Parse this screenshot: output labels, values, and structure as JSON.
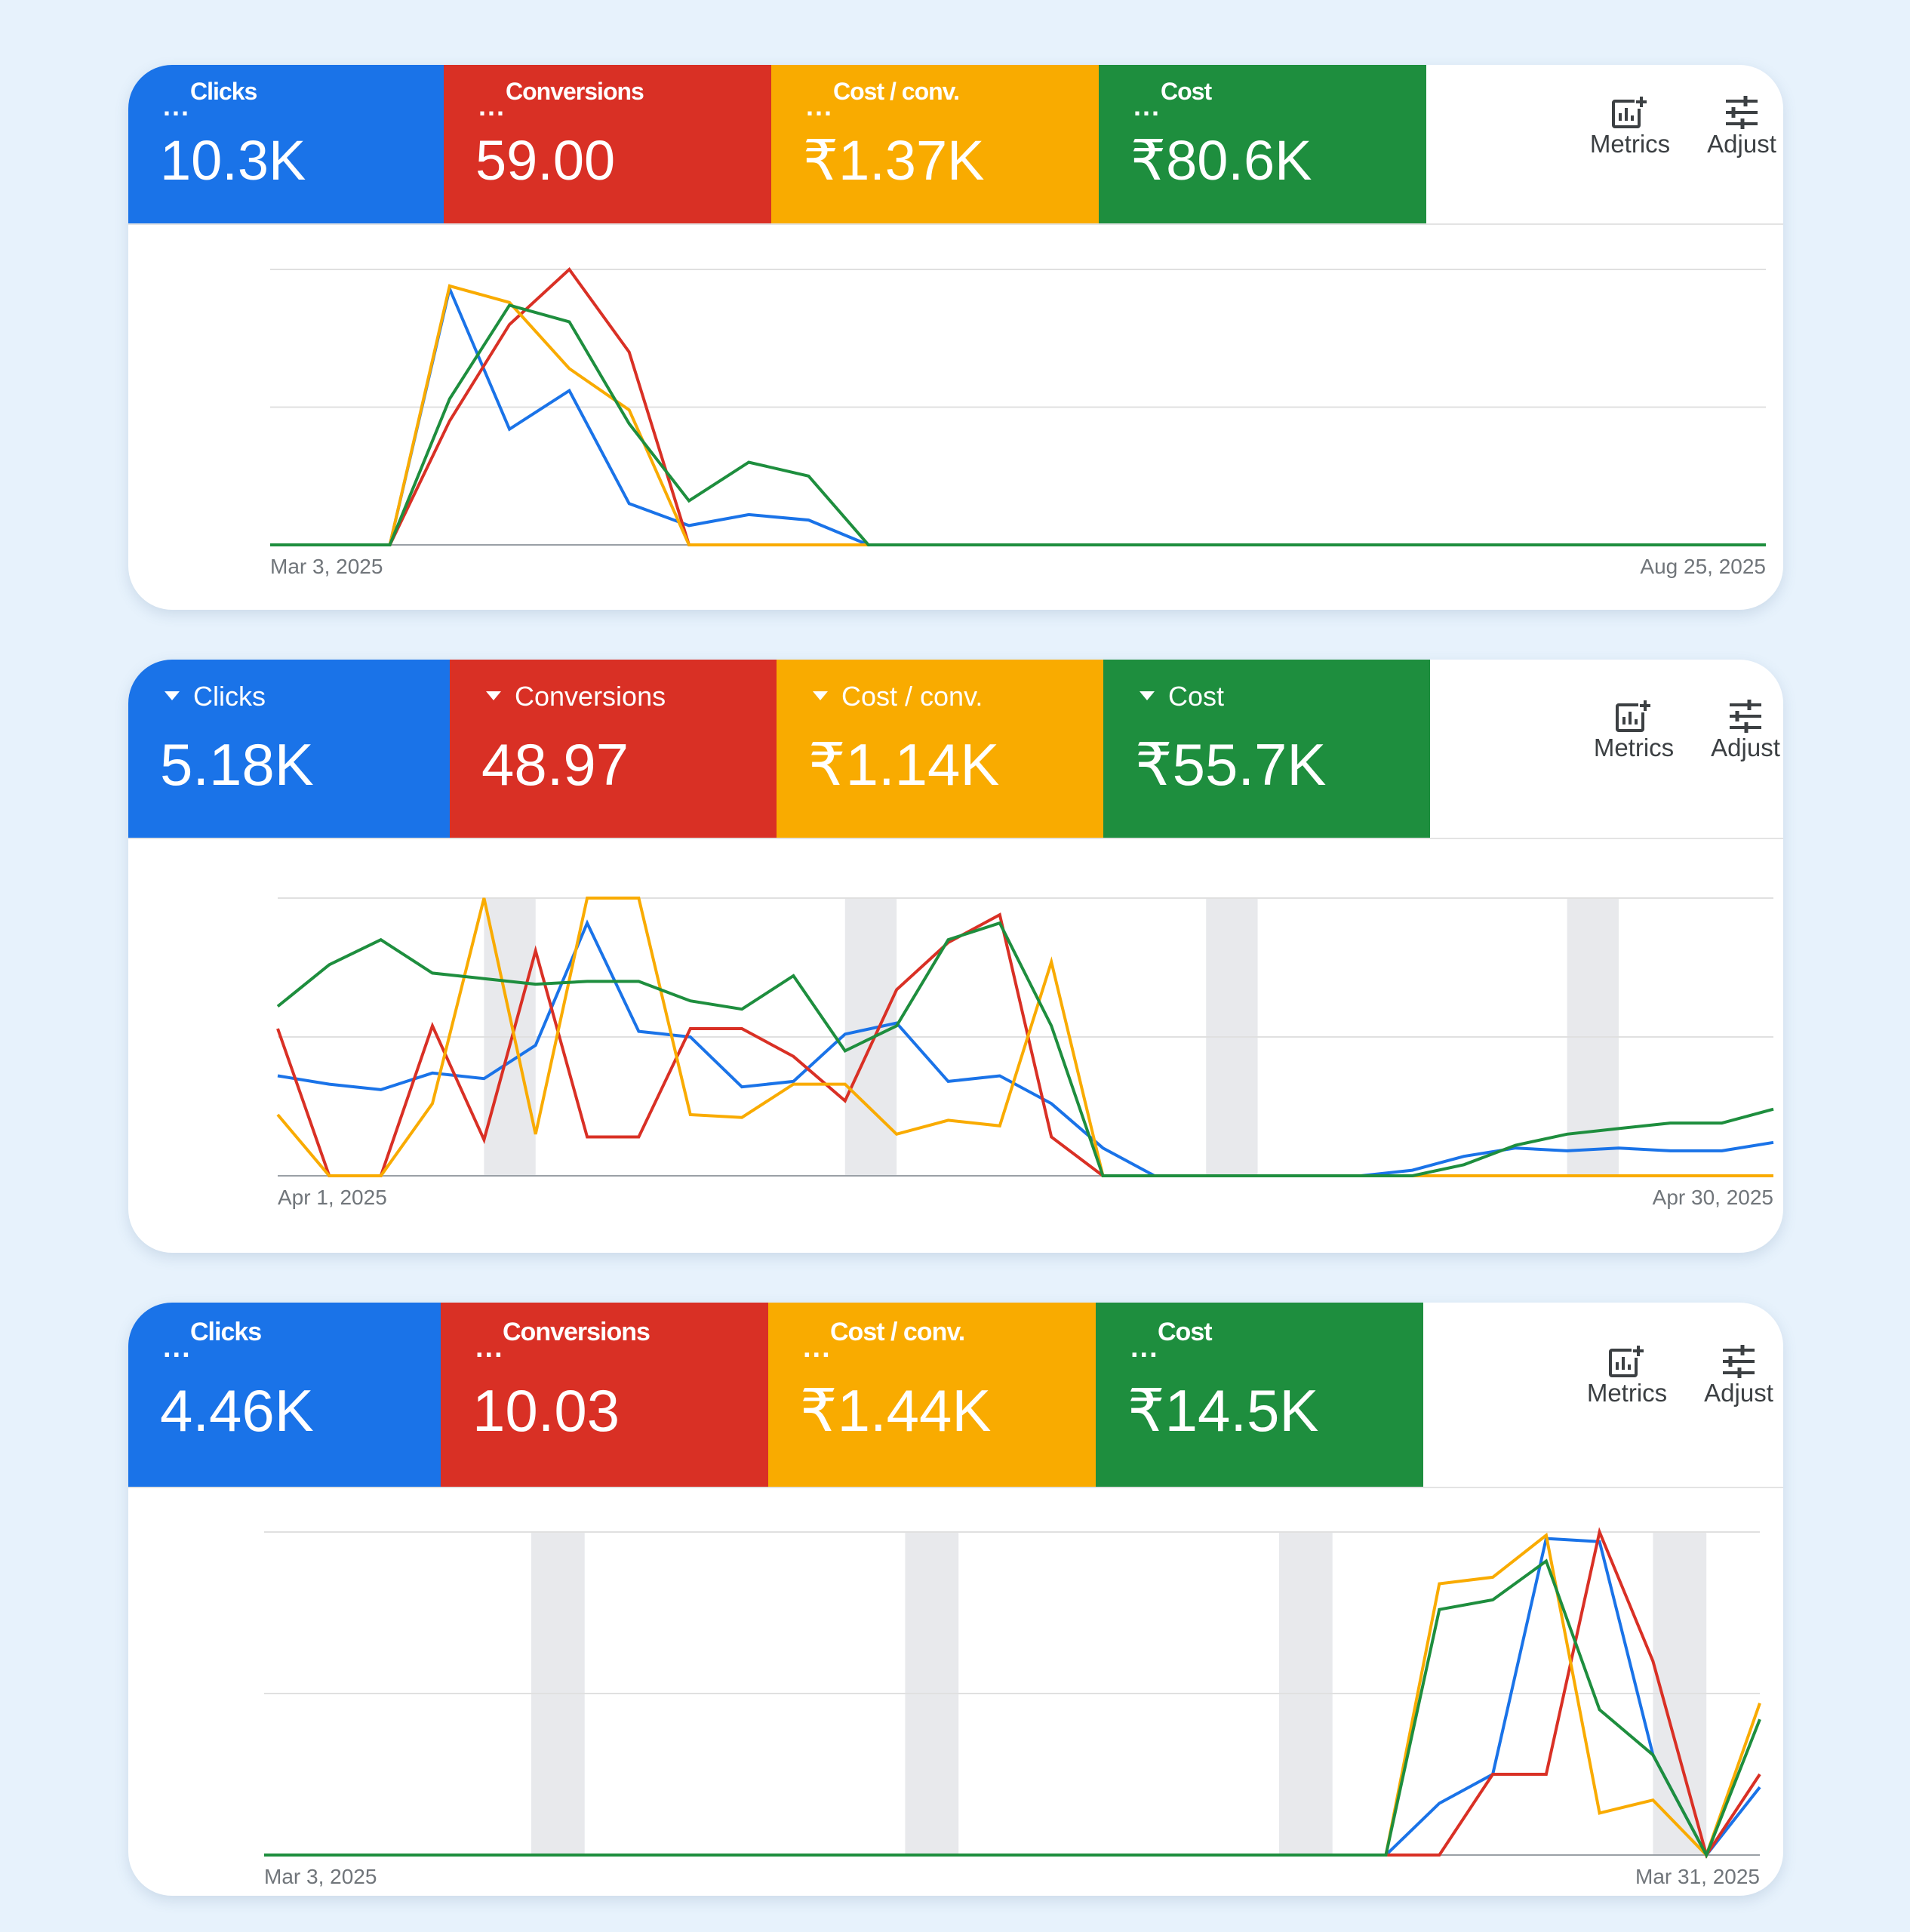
{
  "colors": {
    "clicks": "#1a73e8",
    "conversions": "#d93025",
    "cost_per_conv": "#f9ab00",
    "cost": "#1e8e3e",
    "weekend_band": "#e8e9ec",
    "gridline": "#e0e0e0",
    "page_background": "#e7f2fc"
  },
  "toolbar": {
    "metrics_label": "Metrics",
    "metrics_icon": "chart-add-icon",
    "adjust_label": "Adjust",
    "adjust_icon": "sliders-icon"
  },
  "panels": [
    {
      "tiles": [
        {
          "key": "clicks",
          "label": "Clicks",
          "value": "10.3K"
        },
        {
          "key": "conversions",
          "label": "Conversions",
          "value": "59.00"
        },
        {
          "key": "cost_per_conv",
          "label": "Cost / conv.",
          "value": "₹1.37K"
        },
        {
          "key": "cost",
          "label": "Cost",
          "value": "₹80.6K"
        }
      ],
      "toolbar": {
        "metrics_label": "Metrics",
        "adjust_label": "Adjust"
      },
      "chart_data": {
        "type": "line",
        "x_start_label": "Mar 3, 2025",
        "x_end_label": "Aug 25, 2025",
        "x": [
          "Mar 3, 2025",
          "Mar 10, 2025",
          "Mar 17, 2025",
          "Mar 24, 2025",
          "Mar 31, 2025",
          "Apr 7, 2025",
          "Apr 14, 2025",
          "Apr 21, 2025",
          "Apr 28, 2025",
          "May 5, 2025",
          "May 12, 2025",
          "May 19, 2025",
          "May 26, 2025",
          "Jun 2, 2025",
          "Jun 9, 2025",
          "Jun 16, 2025",
          "Jun 23, 2025",
          "Jun 30, 2025",
          "Jul 7, 2025",
          "Jul 14, 2025",
          "Jul 21, 2025",
          "Jul 28, 2025",
          "Aug 4, 2025",
          "Aug 11, 2025",
          "Aug 18, 2025",
          "Aug 25, 2025"
        ],
        "y_scale": "relative (0-100% of each series' max, no tick labels shown)",
        "ylim": [
          0,
          100
        ],
        "grid": "horizontal gridlines",
        "series": [
          {
            "key": "clicks",
            "values": [
              0,
              0,
              0,
              93,
              42,
              56,
              15,
              7,
              11,
              9,
              0,
              0,
              0,
              0,
              0,
              0,
              0,
              0,
              0,
              0,
              0,
              0,
              0,
              0,
              0,
              0
            ]
          },
          {
            "key": "conversions",
            "values": [
              0,
              0,
              0,
              45,
              80,
              100,
              70,
              0,
              0,
              0,
              0,
              0,
              0,
              0,
              0,
              0,
              0,
              0,
              0,
              0,
              0,
              0,
              0,
              0,
              0,
              0
            ]
          },
          {
            "key": "cost_per_conv",
            "values": [
              0,
              0,
              0,
              94,
              88,
              64,
              49,
              0,
              0,
              0,
              0,
              0,
              0,
              0,
              0,
              0,
              0,
              0,
              0,
              0,
              0,
              0,
              0,
              0,
              0,
              0
            ]
          },
          {
            "key": "cost",
            "values": [
              0,
              0,
              0,
              53,
              87,
              81,
              44,
              16,
              30,
              25,
              0,
              0,
              0,
              0,
              0,
              0,
              0,
              0,
              0,
              0,
              0,
              0,
              0,
              0,
              0,
              0
            ]
          }
        ]
      }
    },
    {
      "tiles": [
        {
          "key": "clicks",
          "label": "Clicks",
          "value": "5.18K"
        },
        {
          "key": "conversions",
          "label": "Conversions",
          "value": "48.97"
        },
        {
          "key": "cost_per_conv",
          "label": "Cost / conv.",
          "value": "₹1.14K"
        },
        {
          "key": "cost",
          "label": "Cost",
          "value": "₹55.7K"
        }
      ],
      "toolbar": {
        "metrics_label": "Metrics",
        "adjust_label": "Adjust"
      },
      "chart_data": {
        "type": "line",
        "x_start_label": "Apr 1, 2025",
        "x_end_label": "Apr 30, 2025",
        "x": [
          "Apr 1",
          "Apr 2",
          "Apr 3",
          "Apr 4",
          "Apr 5",
          "Apr 6",
          "Apr 7",
          "Apr 8",
          "Apr 9",
          "Apr 10",
          "Apr 11",
          "Apr 12",
          "Apr 13",
          "Apr 14",
          "Apr 15",
          "Apr 16",
          "Apr 17",
          "Apr 18",
          "Apr 19",
          "Apr 20",
          "Apr 21",
          "Apr 22",
          "Apr 23",
          "Apr 24",
          "Apr 25",
          "Apr 26",
          "Apr 27",
          "Apr 28",
          "Apr 29",
          "Apr 30"
        ],
        "weekend_bands": [
          [
            "Apr 5",
            "Apr 6"
          ],
          [
            "Apr 12",
            "Apr 13"
          ],
          [
            "Apr 19",
            "Apr 20"
          ],
          [
            "Apr 26",
            "Apr 27"
          ]
        ],
        "y_scale": "relative (0-100% of each series' max, no tick labels shown)",
        "ylim": [
          0,
          100
        ],
        "grid": "horizontal gridlines",
        "series": [
          {
            "key": "clicks",
            "values": [
              36,
              33,
              31,
              37,
              35,
              47,
              91,
              52,
              50,
              32,
              34,
              51,
              55,
              34,
              36,
              26,
              10,
              0,
              0,
              0,
              0,
              0,
              2,
              7,
              10,
              9,
              10,
              9,
              9,
              12
            ]
          },
          {
            "key": "conversions",
            "values": [
              53,
              0,
              0,
              54,
              13,
              81,
              14,
              14,
              53,
              53,
              43,
              27,
              67,
              84,
              94,
              14,
              0,
              0,
              0,
              0,
              0,
              0,
              0,
              0,
              0,
              0,
              0,
              0,
              0,
              0
            ]
          },
          {
            "key": "cost_per_conv",
            "values": [
              22,
              0,
              0,
              26,
              100,
              15,
              100,
              100,
              22,
              21,
              33,
              33,
              15,
              20,
              18,
              77,
              0,
              0,
              0,
              0,
              0,
              0,
              0,
              0,
              0,
              0,
              0,
              0,
              0,
              0
            ]
          },
          {
            "key": "cost",
            "values": [
              61,
              76,
              85,
              73,
              71,
              69,
              70,
              70,
              63,
              60,
              72,
              45,
              54,
              85,
              91,
              54,
              0,
              0,
              0,
              0,
              0,
              0,
              0,
              4,
              11,
              15,
              17,
              19,
              19,
              24
            ]
          }
        ]
      }
    },
    {
      "tiles": [
        {
          "key": "clicks",
          "label": "Clicks",
          "value": "4.46K"
        },
        {
          "key": "conversions",
          "label": "Conversions",
          "value": "10.03"
        },
        {
          "key": "cost_per_conv",
          "label": "Cost / conv.",
          "value": "₹1.44K"
        },
        {
          "key": "cost",
          "label": "Cost",
          "value": "₹14.5K"
        }
      ],
      "toolbar": {
        "metrics_label": "Metrics",
        "adjust_label": "Adjust"
      },
      "chart_data": {
        "type": "line",
        "x_start_label": "Mar 3, 2025",
        "x_end_label": "Mar 31, 2025",
        "x": [
          "Mar 3",
          "Mar 4",
          "Mar 5",
          "Mar 6",
          "Mar 7",
          "Mar 8",
          "Mar 9",
          "Mar 10",
          "Mar 11",
          "Mar 12",
          "Mar 13",
          "Mar 14",
          "Mar 15",
          "Mar 16",
          "Mar 17",
          "Mar 18",
          "Mar 19",
          "Mar 20",
          "Mar 21",
          "Mar 22",
          "Mar 23",
          "Mar 24",
          "Mar 25",
          "Mar 26",
          "Mar 27",
          "Mar 28",
          "Mar 29",
          "Mar 30",
          "Mar 31"
        ],
        "weekend_bands": [
          [
            "Mar 8",
            "Mar 9"
          ],
          [
            "Mar 15",
            "Mar 16"
          ],
          [
            "Mar 22",
            "Mar 23"
          ],
          [
            "Mar 29",
            "Mar 30"
          ]
        ],
        "y_scale": "relative (0-100% of each series' max, no tick labels shown)",
        "ylim": [
          0,
          100
        ],
        "grid": "horizontal gridlines",
        "series": [
          {
            "key": "clicks",
            "values": [
              0,
              0,
              0,
              0,
              0,
              0,
              0,
              0,
              0,
              0,
              0,
              0,
              0,
              0,
              0,
              0,
              0,
              0,
              0,
              0,
              0,
              0,
              16,
              25,
              98,
              97,
              31,
              0,
              21
            ]
          },
          {
            "key": "conversions",
            "values": [
              0,
              0,
              0,
              0,
              0,
              0,
              0,
              0,
              0,
              0,
              0,
              0,
              0,
              0,
              0,
              0,
              0,
              0,
              0,
              0,
              0,
              0,
              0,
              25,
              25,
              100,
              60,
              0,
              25
            ]
          },
          {
            "key": "cost_per_conv",
            "values": [
              0,
              0,
              0,
              0,
              0,
              0,
              0,
              0,
              0,
              0,
              0,
              0,
              0,
              0,
              0,
              0,
              0,
              0,
              0,
              0,
              0,
              0,
              84,
              86,
              99,
              13,
              17,
              0,
              47
            ]
          },
          {
            "key": "cost",
            "values": [
              0,
              0,
              0,
              0,
              0,
              0,
              0,
              0,
              0,
              0,
              0,
              0,
              0,
              0,
              0,
              0,
              0,
              0,
              0,
              0,
              0,
              0,
              76,
              79,
              91,
              45,
              31,
              0,
              42
            ]
          }
        ]
      }
    }
  ]
}
